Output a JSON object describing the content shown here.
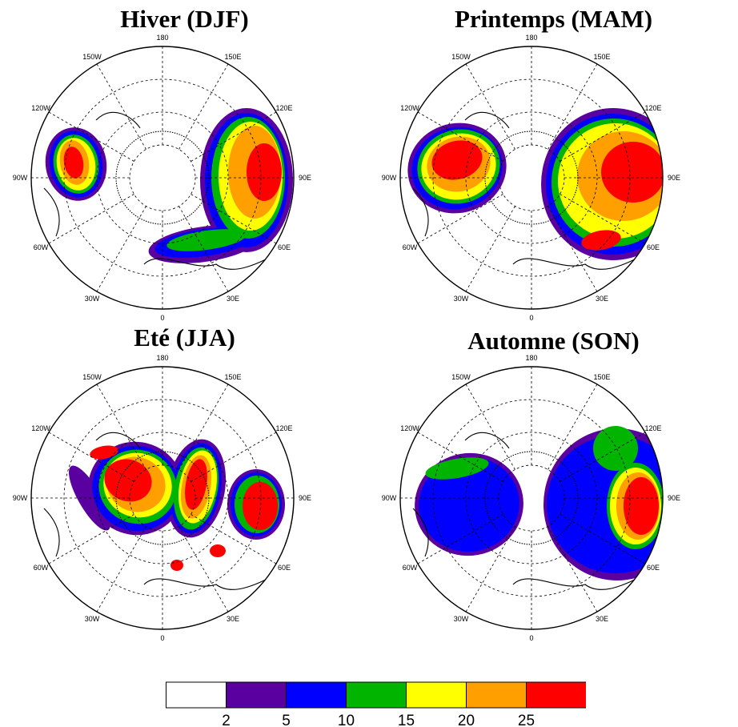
{
  "panels": [
    {
      "title": "Hiver (DJF)"
    },
    {
      "title": "Printemps (MAM)"
    },
    {
      "title": "Eté (JJA)"
    },
    {
      "title": "Automne (SON)"
    }
  ],
  "grid_labels": {
    "lon_180": "180",
    "lon_150e": "150E",
    "lon_120e": "120E",
    "lon_90e": "90E",
    "lon_60e": "60E",
    "lon_30e": "30E",
    "lon_0": "0",
    "lon_30w": "30W",
    "lon_60w": "60W",
    "lon_90w": "90W",
    "lon_120w": "120W",
    "lon_150w": "150W"
  },
  "colorbar": {
    "colors": [
      "#ffffff",
      "#5a00a0",
      "#0000ff",
      "#00b400",
      "#ffff00",
      "#ffa000",
      "#ff0000"
    ],
    "tick_labels": [
      "2",
      "5",
      "10",
      "15",
      "20",
      "25"
    ]
  },
  "colors": {
    "level_2_5": "#5a00a0",
    "level_5_10": "#0000ff",
    "level_10_15": "#00b400",
    "level_15_20": "#ffff00",
    "level_20_25": "#ffa000",
    "level_25_plus": "#ff0000"
  }
}
